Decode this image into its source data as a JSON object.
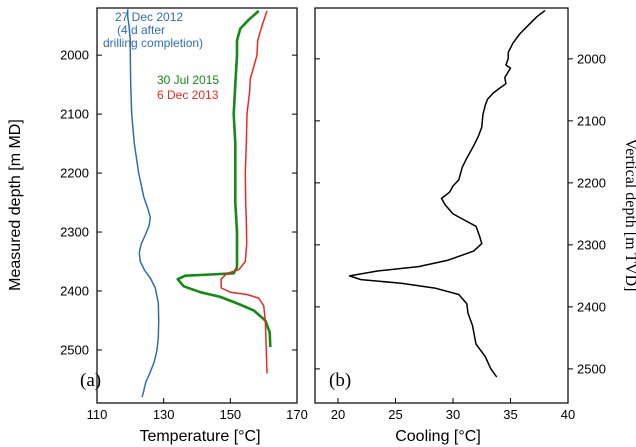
{
  "chart_data": [
    {
      "type": "line",
      "panel_label": "(a)",
      "xlabel": "Temperature [°C]",
      "ylabel": "Measured depth [m MD]",
      "xlim": [
        110,
        170
      ],
      "ylim": [
        2590,
        1920
      ],
      "xticks": [
        "110",
        "130",
        "150",
        "170"
      ],
      "yticks": [
        "2000",
        "2100",
        "2200",
        "2300",
        "2400",
        "2500"
      ],
      "grid": false,
      "series": [
        {
          "name": "27 Dec 2012",
          "annotation_line2": "(4 d  after",
          "annotation_line3": "drilling completion)",
          "color": "#2f6fad",
          "points": [
            [
              119.2,
              1922
            ],
            [
              119.2,
              1935
            ],
            [
              119.6,
              1950
            ],
            [
              120.0,
              1975
            ],
            [
              120.0,
              2000
            ],
            [
              120.1,
              2050
            ],
            [
              120.4,
              2100
            ],
            [
              121.2,
              2150
            ],
            [
              122.5,
              2200
            ],
            [
              124.0,
              2240
            ],
            [
              125.2,
              2260
            ],
            [
              126.0,
              2275
            ],
            [
              125.6,
              2290
            ],
            [
              124.5,
              2305
            ],
            [
              123.3,
              2320
            ],
            [
              122.7,
              2335
            ],
            [
              123.0,
              2350
            ],
            [
              124.3,
              2365
            ],
            [
              126.0,
              2378
            ],
            [
              127.5,
              2395
            ],
            [
              128.4,
              2420
            ],
            [
              128.5,
              2450
            ],
            [
              128.4,
              2480
            ],
            [
              128.0,
              2500
            ],
            [
              127.2,
              2520
            ],
            [
              125.8,
              2540
            ],
            [
              124.6,
              2555
            ],
            [
              124.0,
              2570
            ],
            [
              123.5,
              2580
            ]
          ]
        },
        {
          "name": "30 Jul 2015",
          "color": "#138a13",
          "points": [
            [
              158.5,
              1925
            ],
            [
              155.5,
              1940
            ],
            [
              153.0,
              1955
            ],
            [
              152.0,
              1975
            ],
            [
              152.0,
              2000
            ],
            [
              151.5,
              2050
            ],
            [
              151.0,
              2100
            ],
            [
              151.5,
              2150
            ],
            [
              151.5,
              2200
            ],
            [
              151.5,
              2250
            ],
            [
              152.0,
              2300
            ],
            [
              152.0,
              2330
            ],
            [
              152.0,
              2360
            ],
            [
              151.0,
              2370
            ],
            [
              144.0,
              2372
            ],
            [
              136.5,
              2374
            ],
            [
              134.2,
              2380
            ],
            [
              136.0,
              2392
            ],
            [
              141.0,
              2402
            ],
            [
              147.0,
              2410
            ],
            [
              152.5,
              2422
            ],
            [
              157.0,
              2433
            ],
            [
              160.5,
              2450
            ],
            [
              161.8,
              2470
            ],
            [
              162.0,
              2495
            ]
          ]
        },
        {
          "name": "6 Dec 2013",
          "color": "#e82a22",
          "points": [
            [
              161.0,
              1925
            ],
            [
              159.5,
              1950
            ],
            [
              158.2,
              1975
            ],
            [
              158.0,
              2000
            ],
            [
              157.0,
              2020
            ],
            [
              156.0,
              2040
            ],
            [
              155.8,
              2060
            ],
            [
              155.0,
              2100
            ],
            [
              154.8,
              2150
            ],
            [
              154.5,
              2200
            ],
            [
              154.6,
              2250
            ],
            [
              154.8,
              2280
            ],
            [
              154.9,
              2320
            ],
            [
              154.5,
              2350
            ],
            [
              152.5,
              2364
            ],
            [
              149.0,
              2370
            ],
            [
              147.2,
              2380
            ],
            [
              147.3,
              2395
            ],
            [
              150.0,
              2402
            ],
            [
              155.0,
              2406
            ],
            [
              158.5,
              2412
            ],
            [
              160.0,
              2425
            ],
            [
              160.5,
              2450
            ],
            [
              160.8,
              2500
            ],
            [
              161.0,
              2540
            ]
          ]
        }
      ]
    },
    {
      "type": "line",
      "panel_label": "(b)",
      "xlabel": "Cooling [°C]",
      "ylabel": "Vertical depth [m TVD]",
      "xlim": [
        18,
        40
      ],
      "ylim": [
        2555,
        1918
      ],
      "xticks": [
        "20",
        "25",
        "30",
        "35",
        "40"
      ],
      "yticks": [
        "2000",
        "2100",
        "2200",
        "2300",
        "2400",
        "2500"
      ],
      "grid": false,
      "series": [
        {
          "color": "#000000",
          "points": [
            [
              38.0,
              1922
            ],
            [
              37.3,
              1932
            ],
            [
              36.6,
              1945
            ],
            [
              35.8,
              1960
            ],
            [
              35.2,
              1975
            ],
            [
              34.8,
              1990
            ],
            [
              34.8,
              2000
            ],
            [
              34.6,
              2010
            ],
            [
              35.0,
              2015
            ],
            [
              34.5,
              2030
            ],
            [
              34.6,
              2040
            ],
            [
              34.0,
              2048
            ],
            [
              33.5,
              2055
            ],
            [
              33.0,
              2065
            ],
            [
              32.8,
              2075
            ],
            [
              32.6,
              2090
            ],
            [
              32.5,
              2110
            ],
            [
              32.2,
              2125
            ],
            [
              31.8,
              2140
            ],
            [
              31.2,
              2160
            ],
            [
              30.8,
              2175
            ],
            [
              30.5,
              2195
            ],
            [
              30.0,
              2205
            ],
            [
              29.7,
              2215
            ],
            [
              29.0,
              2225
            ],
            [
              29.3,
              2235
            ],
            [
              30.0,
              2250
            ],
            [
              31.0,
              2260
            ],
            [
              32.0,
              2270
            ],
            [
              32.3,
              2285
            ],
            [
              32.5,
              2298
            ],
            [
              31.8,
              2310
            ],
            [
              29.5,
              2325
            ],
            [
              27.0,
              2335
            ],
            [
              23.5,
              2342
            ],
            [
              21.0,
              2350
            ],
            [
              22.0,
              2356
            ],
            [
              25.5,
              2362
            ],
            [
              28.5,
              2370
            ],
            [
              30.5,
              2380
            ],
            [
              31.2,
              2395
            ],
            [
              31.3,
              2410
            ],
            [
              31.7,
              2430
            ],
            [
              32.0,
              2460
            ],
            [
              32.8,
              2480
            ],
            [
              33.3,
              2500
            ],
            [
              33.8,
              2513
            ]
          ]
        }
      ]
    }
  ]
}
